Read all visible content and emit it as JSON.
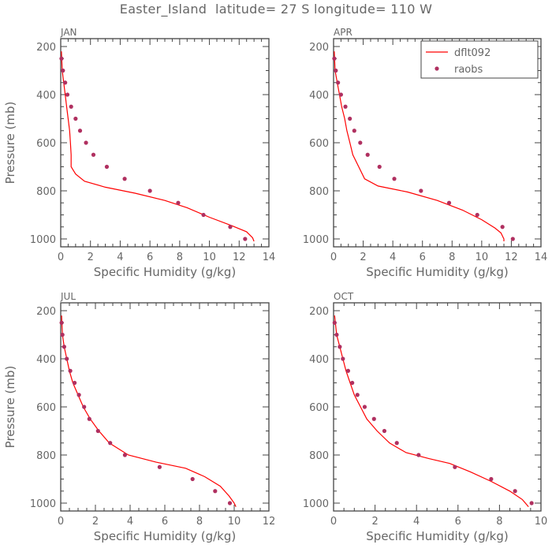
{
  "figure": {
    "title": "Easter_Island  latitude= 27 S longitude= 110 W"
  },
  "chart_data": [
    {
      "type": "line",
      "panel_label": "JAN",
      "xlabel": "Specific Humidity (g/kg)",
      "ylabel": "Pressure (mb)",
      "xlim": [
        0,
        14
      ],
      "ylim": [
        1000,
        200
      ],
      "x_ticks": [
        "0",
        "2",
        "4",
        "6",
        "8",
        "10",
        "12",
        "14"
      ],
      "y_ticks": [
        "200",
        "400",
        "600",
        "800",
        "1000"
      ],
      "grid": false,
      "legend": null,
      "series": [
        {
          "name": "dflt092",
          "kind": "line",
          "color": "#ff0000",
          "points": [
            [
              0.05,
              220
            ],
            [
              0.1,
              300
            ],
            [
              0.2,
              350
            ],
            [
              0.3,
              400
            ],
            [
              0.4,
              450
            ],
            [
              0.5,
              500
            ],
            [
              0.6,
              550
            ],
            [
              0.65,
              600
            ],
            [
              0.7,
              650
            ],
            [
              0.7,
              700
            ],
            [
              1.0,
              730
            ],
            [
              1.6,
              760
            ],
            [
              3.0,
              785
            ],
            [
              5.0,
              810
            ],
            [
              7.0,
              840
            ],
            [
              8.5,
              870
            ],
            [
              10.0,
              910
            ],
            [
              11.5,
              945
            ],
            [
              12.5,
              970
            ],
            [
              12.9,
              995
            ],
            [
              13.0,
              1010
            ]
          ]
        },
        {
          "name": "raobs",
          "kind": "scatter",
          "color": "#b03060",
          "points": [
            [
              0.05,
              250
            ],
            [
              0.15,
              300
            ],
            [
              0.3,
              350
            ],
            [
              0.45,
              400
            ],
            [
              0.7,
              450
            ],
            [
              1.0,
              500
            ],
            [
              1.3,
              550
            ],
            [
              1.7,
              600
            ],
            [
              2.2,
              650
            ],
            [
              3.1,
              700
            ],
            [
              4.3,
              750
            ],
            [
              6.0,
              800
            ],
            [
              7.9,
              850
            ],
            [
              9.6,
              900
            ],
            [
              11.4,
              950
            ],
            [
              12.4,
              1000
            ]
          ]
        }
      ]
    },
    {
      "type": "line",
      "panel_label": "APR",
      "xlabel": "Specific Humidity (g/kg)",
      "ylabel": "",
      "xlim": [
        0,
        14
      ],
      "ylim": [
        1000,
        200
      ],
      "x_ticks": [
        "0",
        "2",
        "4",
        "6",
        "8",
        "10",
        "12",
        "14"
      ],
      "y_ticks": [
        "200",
        "400",
        "600",
        "800",
        "1000"
      ],
      "grid": false,
      "legend": {
        "position": "top-right",
        "entries": [
          "dflt092",
          "raobs"
        ]
      },
      "series": [
        {
          "name": "dflt092",
          "kind": "line",
          "color": "#ff0000",
          "points": [
            [
              0.05,
              220
            ],
            [
              0.1,
              300
            ],
            [
              0.25,
              350
            ],
            [
              0.4,
              400
            ],
            [
              0.55,
              450
            ],
            [
              0.75,
              500
            ],
            [
              0.9,
              550
            ],
            [
              1.1,
              600
            ],
            [
              1.3,
              650
            ],
            [
              1.7,
              700
            ],
            [
              2.1,
              750
            ],
            [
              3.0,
              780
            ],
            [
              5.0,
              805
            ],
            [
              7.0,
              840
            ],
            [
              8.7,
              880
            ],
            [
              10.0,
              920
            ],
            [
              10.9,
              955
            ],
            [
              11.3,
              975
            ],
            [
              11.5,
              1000
            ],
            [
              11.5,
              1010
            ]
          ]
        },
        {
          "name": "raobs",
          "kind": "scatter",
          "color": "#b03060",
          "points": [
            [
              0.05,
              250
            ],
            [
              0.15,
              300
            ],
            [
              0.3,
              350
            ],
            [
              0.5,
              400
            ],
            [
              0.8,
              450
            ],
            [
              1.1,
              500
            ],
            [
              1.4,
              550
            ],
            [
              1.8,
              600
            ],
            [
              2.3,
              650
            ],
            [
              3.1,
              700
            ],
            [
              4.1,
              750
            ],
            [
              5.9,
              800
            ],
            [
              7.8,
              850
            ],
            [
              9.7,
              900
            ],
            [
              11.4,
              950
            ],
            [
              12.1,
              1000
            ]
          ]
        }
      ]
    },
    {
      "type": "line",
      "panel_label": "JUL",
      "xlabel": "Specific Humidity (g/kg)",
      "ylabel": "Pressure (mb)",
      "xlim": [
        0,
        12
      ],
      "ylim": [
        1000,
        200
      ],
      "x_ticks": [
        "0",
        "2",
        "4",
        "6",
        "8",
        "10",
        "12"
      ],
      "y_ticks": [
        "200",
        "400",
        "600",
        "800",
        "1000"
      ],
      "grid": false,
      "legend": null,
      "series": [
        {
          "name": "dflt092",
          "kind": "line",
          "color": "#ff0000",
          "points": [
            [
              0.05,
              220
            ],
            [
              0.1,
              300
            ],
            [
              0.2,
              350
            ],
            [
              0.35,
              400
            ],
            [
              0.5,
              450
            ],
            [
              0.7,
              500
            ],
            [
              1.0,
              550
            ],
            [
              1.3,
              600
            ],
            [
              1.7,
              650
            ],
            [
              2.2,
              700
            ],
            [
              2.8,
              750
            ],
            [
              3.9,
              800
            ],
            [
              5.5,
              830
            ],
            [
              7.2,
              855
            ],
            [
              8.3,
              890
            ],
            [
              9.2,
              930
            ],
            [
              9.7,
              970
            ],
            [
              10.0,
              1000
            ],
            [
              10.1,
              1015
            ]
          ]
        },
        {
          "name": "raobs",
          "kind": "scatter",
          "color": "#b03060",
          "points": [
            [
              0.05,
              250
            ],
            [
              0.1,
              300
            ],
            [
              0.2,
              350
            ],
            [
              0.35,
              400
            ],
            [
              0.55,
              450
            ],
            [
              0.8,
              500
            ],
            [
              1.05,
              550
            ],
            [
              1.35,
              600
            ],
            [
              1.65,
              650
            ],
            [
              2.15,
              700
            ],
            [
              2.85,
              750
            ],
            [
              3.7,
              800
            ],
            [
              5.7,
              850
            ],
            [
              7.6,
              900
            ],
            [
              8.9,
              950
            ],
            [
              9.75,
              1000
            ]
          ]
        }
      ]
    },
    {
      "type": "line",
      "panel_label": "OCT",
      "xlabel": "Specific Humidity (g/kg)",
      "ylabel": "",
      "xlim": [
        0,
        10
      ],
      "ylim": [
        1000,
        200
      ],
      "x_ticks": [
        "0",
        "2",
        "4",
        "6",
        "8",
        "10"
      ],
      "y_ticks": [
        "200",
        "400",
        "600",
        "800",
        "1000"
      ],
      "grid": false,
      "legend": null,
      "series": [
        {
          "name": "dflt092",
          "kind": "line",
          "color": "#ff0000",
          "points": [
            [
              0.05,
              220
            ],
            [
              0.15,
              300
            ],
            [
              0.3,
              350
            ],
            [
              0.45,
              400
            ],
            [
              0.6,
              450
            ],
            [
              0.8,
              500
            ],
            [
              1.0,
              550
            ],
            [
              1.3,
              600
            ],
            [
              1.6,
              650
            ],
            [
              2.1,
              700
            ],
            [
              2.7,
              750
            ],
            [
              3.5,
              790
            ],
            [
              4.6,
              815
            ],
            [
              5.6,
              835
            ],
            [
              6.6,
              870
            ],
            [
              7.6,
              910
            ],
            [
              8.5,
              950
            ],
            [
              9.1,
              985
            ],
            [
              9.4,
              1015
            ]
          ]
        },
        {
          "name": "raobs",
          "kind": "scatter",
          "color": "#b03060",
          "points": [
            [
              0.05,
              250
            ],
            [
              0.15,
              300
            ],
            [
              0.3,
              350
            ],
            [
              0.45,
              400
            ],
            [
              0.7,
              450
            ],
            [
              0.9,
              500
            ],
            [
              1.15,
              550
            ],
            [
              1.5,
              600
            ],
            [
              1.95,
              650
            ],
            [
              2.45,
              700
            ],
            [
              3.05,
              750
            ],
            [
              4.1,
              800
            ],
            [
              5.85,
              850
            ],
            [
              7.6,
              900
            ],
            [
              8.75,
              950
            ],
            [
              9.55,
              1000
            ]
          ]
        }
      ]
    }
  ]
}
